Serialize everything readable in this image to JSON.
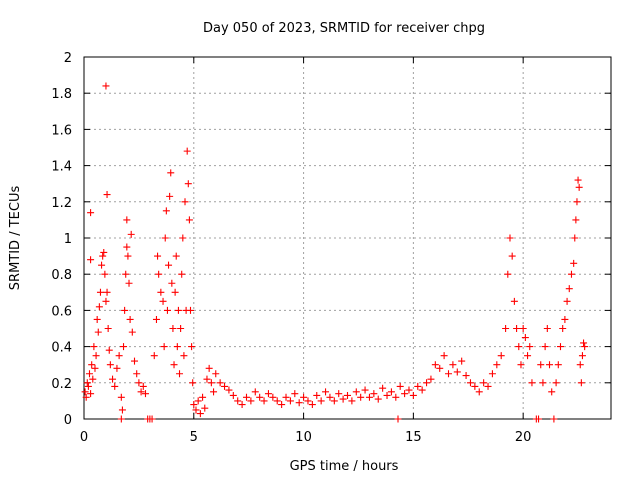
{
  "chart_data": {
    "type": "scatter",
    "title": "Day 050 of 2023, SRMTID for receiver chpg",
    "xlabel": "GPS time / hours",
    "ylabel": "SRMTID / TECUs",
    "xlim": [
      0,
      24
    ],
    "ylim": [
      0,
      2
    ],
    "xticks": [
      "0",
      "5",
      "10",
      "15",
      "20"
    ],
    "yticks": [
      "0",
      "0.2",
      "0.4",
      "0.6",
      "0.8",
      "1",
      "1.2",
      "1.4",
      "1.6",
      "1.8",
      "2"
    ],
    "grid": true,
    "marker": "+",
    "color": "#ff0000",
    "series": [
      {
        "name": "SRMTID",
        "points": [
          [
            0.05,
            0.15
          ],
          [
            0.1,
            0.12
          ],
          [
            0.15,
            0.2
          ],
          [
            0.2,
            0.18
          ],
          [
            0.25,
            0.25
          ],
          [
            0.3,
            0.14
          ],
          [
            0.3,
            0.88
          ],
          [
            0.3,
            1.14
          ],
          [
            0.35,
            0.3
          ],
          [
            0.4,
            0.22
          ],
          [
            0.45,
            0.4
          ],
          [
            0.5,
            0.28
          ],
          [
            0.55,
            0.35
          ],
          [
            0.6,
            0.55
          ],
          [
            0.65,
            0.48
          ],
          [
            0.7,
            0.62
          ],
          [
            0.75,
            0.7
          ],
          [
            0.8,
            0.85
          ],
          [
            0.85,
            0.9
          ],
          [
            0.9,
            0.92
          ],
          [
            0.95,
            0.8
          ],
          [
            1.0,
            0.65
          ],
          [
            1.0,
            1.84
          ],
          [
            1.05,
            0.7
          ],
          [
            1.05,
            1.24
          ],
          [
            1.1,
            0.5
          ],
          [
            1.15,
            0.38
          ],
          [
            1.2,
            0.3
          ],
          [
            1.3,
            0.22
          ],
          [
            1.4,
            0.18
          ],
          [
            1.5,
            0.28
          ],
          [
            1.6,
            0.35
          ],
          [
            1.7,
            0.12
          ],
          [
            1.7,
            0.0
          ],
          [
            1.75,
            0.05
          ],
          [
            1.8,
            0.4
          ],
          [
            1.85,
            0.6
          ],
          [
            1.9,
            0.8
          ],
          [
            1.95,
            0.95
          ],
          [
            1.95,
            1.1
          ],
          [
            2.0,
            0.9
          ],
          [
            2.05,
            0.75
          ],
          [
            2.1,
            0.55
          ],
          [
            2.15,
            1.02
          ],
          [
            2.2,
            0.48
          ],
          [
            2.3,
            0.32
          ],
          [
            2.4,
            0.25
          ],
          [
            2.5,
            0.2
          ],
          [
            2.6,
            0.15
          ],
          [
            2.7,
            0.18
          ],
          [
            2.8,
            0.14
          ],
          [
            2.9,
            0.0
          ],
          [
            3.0,
            0.0
          ],
          [
            3.1,
            0.0
          ],
          [
            3.2,
            0.35
          ],
          [
            3.3,
            0.55
          ],
          [
            3.35,
            0.9
          ],
          [
            3.4,
            0.8
          ],
          [
            3.5,
            0.7
          ],
          [
            3.6,
            0.65
          ],
          [
            3.65,
            0.4
          ],
          [
            3.7,
            1.0
          ],
          [
            3.75,
            1.15
          ],
          [
            3.8,
            0.6
          ],
          [
            3.85,
            0.85
          ],
          [
            3.9,
            1.23
          ],
          [
            3.95,
            1.36
          ],
          [
            4.0,
            0.75
          ],
          [
            4.05,
            0.5
          ],
          [
            4.1,
            0.3
          ],
          [
            4.15,
            0.7
          ],
          [
            4.2,
            0.9
          ],
          [
            4.25,
            0.4
          ],
          [
            4.3,
            0.6
          ],
          [
            4.35,
            0.25
          ],
          [
            4.4,
            0.5
          ],
          [
            4.45,
            0.8
          ],
          [
            4.5,
            1.0
          ],
          [
            4.55,
            0.35
          ],
          [
            4.6,
            1.2
          ],
          [
            4.65,
            0.6
          ],
          [
            4.7,
            1.48
          ],
          [
            4.75,
            1.3
          ],
          [
            4.8,
            1.1
          ],
          [
            4.85,
            0.6
          ],
          [
            4.9,
            0.4
          ],
          [
            4.95,
            0.2
          ],
          [
            5.0,
            0.08
          ],
          [
            5.1,
            0.05
          ],
          [
            5.2,
            0.1
          ],
          [
            5.3,
            0.03
          ],
          [
            5.4,
            0.12
          ],
          [
            5.5,
            0.06
          ],
          [
            5.6,
            0.22
          ],
          [
            5.7,
            0.28
          ],
          [
            5.8,
            0.2
          ],
          [
            5.9,
            0.15
          ],
          [
            6.0,
            0.25
          ],
          [
            6.2,
            0.2
          ],
          [
            6.4,
            0.18
          ],
          [
            6.6,
            0.16
          ],
          [
            6.8,
            0.13
          ],
          [
            7.0,
            0.1
          ],
          [
            7.2,
            0.08
          ],
          [
            7.4,
            0.12
          ],
          [
            7.6,
            0.1
          ],
          [
            7.8,
            0.15
          ],
          [
            8.0,
            0.12
          ],
          [
            8.2,
            0.1
          ],
          [
            8.4,
            0.14
          ],
          [
            8.6,
            0.12
          ],
          [
            8.8,
            0.1
          ],
          [
            9.0,
            0.08
          ],
          [
            9.2,
            0.12
          ],
          [
            9.4,
            0.1
          ],
          [
            9.6,
            0.14
          ],
          [
            9.8,
            0.09
          ],
          [
            10.0,
            0.12
          ],
          [
            10.2,
            0.1
          ],
          [
            10.4,
            0.08
          ],
          [
            10.6,
            0.13
          ],
          [
            10.8,
            0.1
          ],
          [
            11.0,
            0.15
          ],
          [
            11.2,
            0.12
          ],
          [
            11.4,
            0.1
          ],
          [
            11.6,
            0.14
          ],
          [
            11.8,
            0.11
          ],
          [
            12.0,
            0.13
          ],
          [
            12.2,
            0.1
          ],
          [
            12.4,
            0.15
          ],
          [
            12.6,
            0.12
          ],
          [
            12.8,
            0.16
          ],
          [
            13.0,
            0.12
          ],
          [
            13.2,
            0.14
          ],
          [
            13.4,
            0.11
          ],
          [
            13.6,
            0.17
          ],
          [
            13.8,
            0.13
          ],
          [
            14.0,
            0.15
          ],
          [
            14.2,
            0.12
          ],
          [
            14.3,
            0.0
          ],
          [
            14.4,
            0.18
          ],
          [
            14.6,
            0.14
          ],
          [
            14.8,
            0.16
          ],
          [
            15.0,
            0.13
          ],
          [
            15.2,
            0.18
          ],
          [
            15.4,
            0.16
          ],
          [
            15.6,
            0.2
          ],
          [
            15.8,
            0.22
          ],
          [
            16.0,
            0.3
          ],
          [
            16.2,
            0.28
          ],
          [
            16.4,
            0.35
          ],
          [
            16.6,
            0.25
          ],
          [
            16.8,
            0.3
          ],
          [
            17.0,
            0.26
          ],
          [
            17.2,
            0.32
          ],
          [
            17.4,
            0.24
          ],
          [
            17.6,
            0.2
          ],
          [
            17.8,
            0.18
          ],
          [
            18.0,
            0.15
          ],
          [
            18.2,
            0.2
          ],
          [
            18.4,
            0.18
          ],
          [
            18.6,
            0.25
          ],
          [
            18.8,
            0.3
          ],
          [
            19.0,
            0.35
          ],
          [
            19.2,
            0.5
          ],
          [
            19.3,
            0.8
          ],
          [
            19.4,
            1.0
          ],
          [
            19.5,
            0.9
          ],
          [
            19.6,
            0.65
          ],
          [
            19.7,
            0.5
          ],
          [
            19.8,
            0.4
          ],
          [
            19.9,
            0.3
          ],
          [
            20.0,
            0.5
          ],
          [
            20.1,
            0.45
          ],
          [
            20.2,
            0.35
          ],
          [
            20.3,
            0.4
          ],
          [
            20.4,
            0.2
          ],
          [
            20.6,
            0.0
          ],
          [
            20.7,
            0.0
          ],
          [
            20.8,
            0.3
          ],
          [
            20.9,
            0.2
          ],
          [
            21.0,
            0.4
          ],
          [
            21.1,
            0.5
          ],
          [
            21.2,
            0.3
          ],
          [
            21.3,
            0.15
          ],
          [
            21.4,
            0.0
          ],
          [
            21.5,
            0.2
          ],
          [
            21.6,
            0.3
          ],
          [
            21.7,
            0.4
          ],
          [
            21.8,
            0.5
          ],
          [
            21.9,
            0.55
          ],
          [
            22.0,
            0.65
          ],
          [
            22.1,
            0.72
          ],
          [
            22.2,
            0.8
          ],
          [
            22.3,
            0.86
          ],
          [
            22.35,
            1.0
          ],
          [
            22.4,
            1.1
          ],
          [
            22.45,
            1.2
          ],
          [
            22.5,
            1.32
          ],
          [
            22.55,
            1.28
          ],
          [
            22.6,
            0.3
          ],
          [
            22.65,
            0.2
          ],
          [
            22.7,
            0.35
          ],
          [
            22.75,
            0.42
          ],
          [
            22.8,
            0.4
          ]
        ]
      }
    ]
  }
}
